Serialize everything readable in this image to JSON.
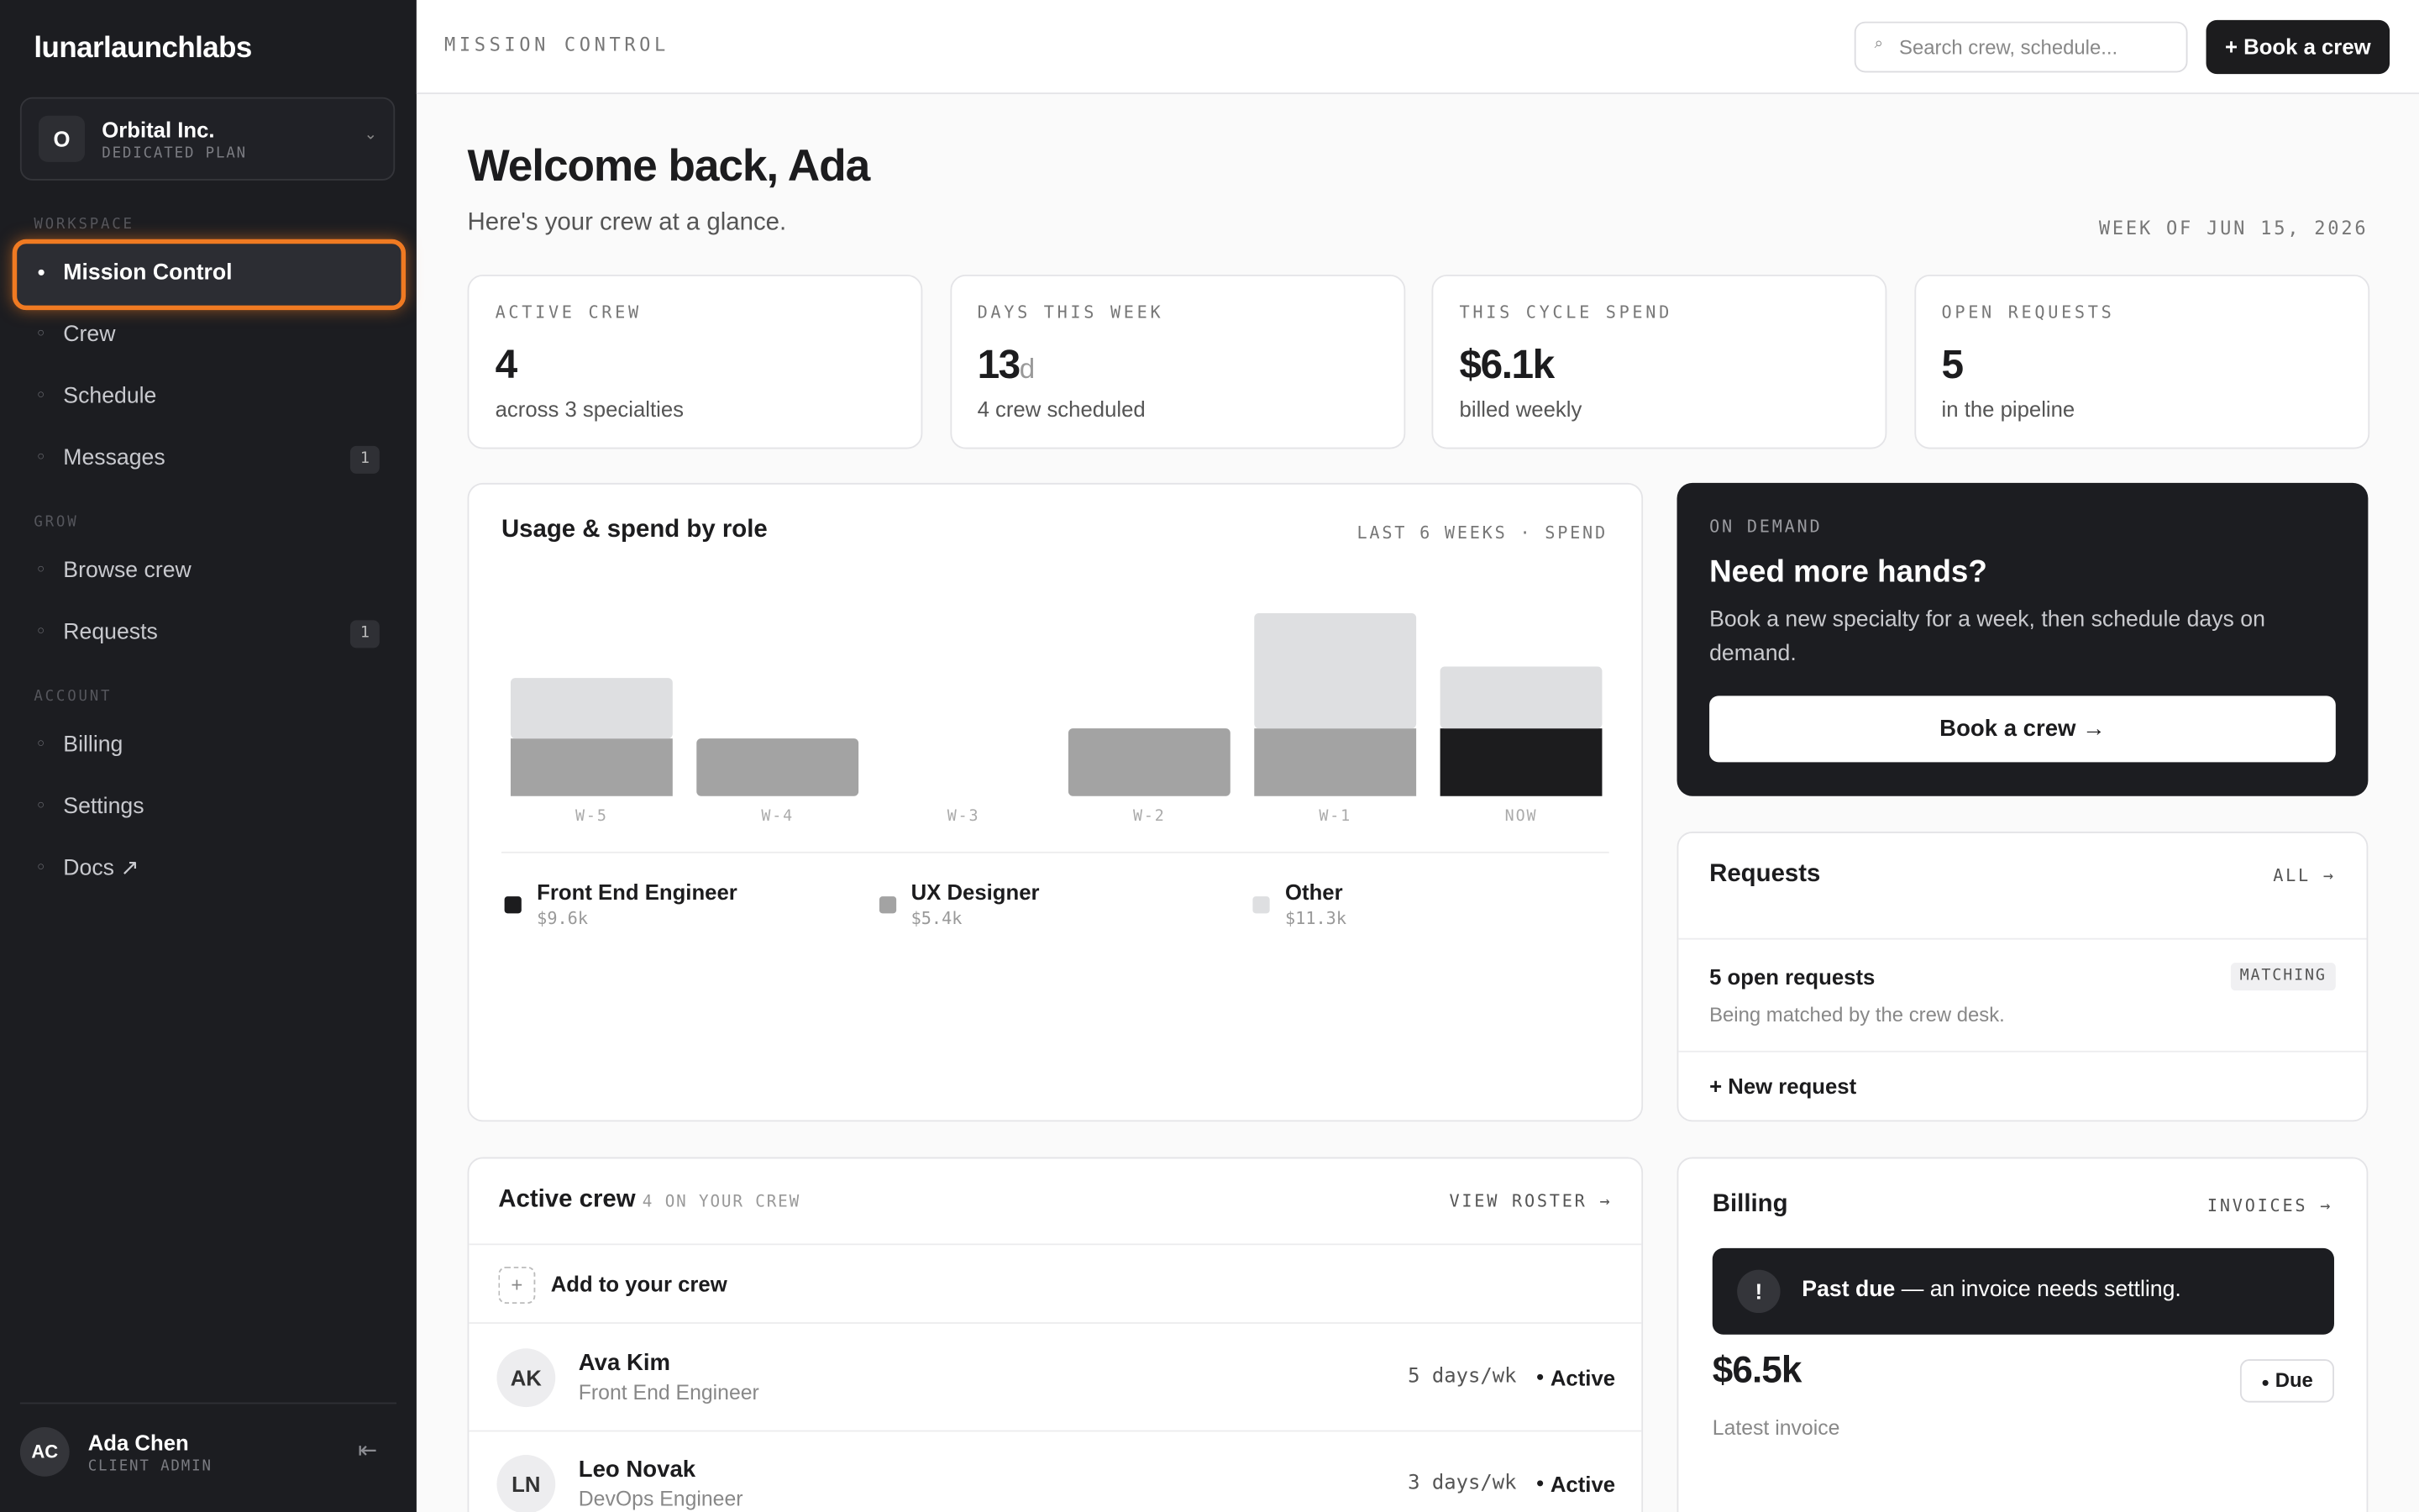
{
  "sidebar": {
    "brand": "lunarlaunchlabs",
    "org": {
      "initial": "O",
      "name": "Orbital Inc.",
      "plan": "DEDICATED PLAN"
    },
    "sections": [
      {
        "label": "WORKSPACE",
        "items": [
          {
            "label": "Mission Control",
            "active": true
          },
          {
            "label": "Crew"
          },
          {
            "label": "Schedule"
          },
          {
            "label": "Messages",
            "badge": "1"
          }
        ]
      },
      {
        "label": "GROW",
        "items": [
          {
            "label": "Browse crew"
          },
          {
            "label": "Requests",
            "badge": "1"
          }
        ]
      },
      {
        "label": "ACCOUNT",
        "items": [
          {
            "label": "Billing"
          },
          {
            "label": "Settings"
          },
          {
            "label": "Docs ↗"
          }
        ]
      }
    ],
    "user": {
      "initials": "AC",
      "name": "Ada Chen",
      "role": "CLIENT ADMIN"
    }
  },
  "topbar": {
    "title": "MISSION CONTROL",
    "search": "Search crew, schedule...",
    "button": "+ Book a crew"
  },
  "header": {
    "title": "Welcome back, Ada",
    "subtitle": "Here's your crew at a glance.",
    "week": "WEEK OF JUN 15, 2026"
  },
  "stats": [
    {
      "label": "ACTIVE CREW",
      "value": "4",
      "sub": "across 3 specialties"
    },
    {
      "label": "DAYS THIS WEEK",
      "value": "13",
      "unit": "d",
      "sub": "4 crew scheduled"
    },
    {
      "label": "THIS CYCLE SPEND",
      "value": "$6.1k",
      "sub": "billed weekly"
    },
    {
      "label": "OPEN REQUESTS",
      "value": "5",
      "sub": "in the pipeline"
    }
  ],
  "chart_data": {
    "type": "bar",
    "stacked": true,
    "title": "Usage & spend by role",
    "subtitle": "LAST 6 WEEKS · SPEND",
    "categories": [
      "W-5",
      "W-4",
      "W-3",
      "W-2",
      "W-1",
      "NOW"
    ],
    "ylim": [
      0,
      3
    ],
    "series": [
      {
        "name": "Front End Engineer",
        "total": "$9.6k",
        "color": "#1c1c1e",
        "values": [
          0,
          0,
          0,
          0,
          0,
          0.94
        ]
      },
      {
        "name": "UX Designer",
        "total": "$5.4k",
        "color": "#a3a3a3",
        "values": [
          0.8,
          0.8,
          0,
          0.94,
          0.94,
          0
        ]
      },
      {
        "name": "Other",
        "total": "$11.3k",
        "color": "#dedfe1",
        "values": [
          0.84,
          0,
          0,
          0,
          1.6,
          0.86
        ]
      }
    ]
  },
  "on_demand": {
    "eyebrow": "ON DEMAND",
    "title": "Need more hands?",
    "text": "Book a new specialty for a week, then schedule days on demand.",
    "button": "Book a crew →"
  },
  "requests": {
    "title": "Requests",
    "link": "ALL →",
    "summary": "5 open requests",
    "badge": "MATCHING",
    "detail": "Being matched by the crew desk.",
    "new": "+ New request"
  },
  "crew": {
    "title": "Active crew",
    "count": "4 ON YOUR CREW",
    "link": "VIEW ROSTER →",
    "add": "Add to your crew",
    "members": [
      {
        "initials": "AK",
        "name": "Ava Kim",
        "role": "Front End Engineer",
        "days": "5 days/wk",
        "status": "Active"
      },
      {
        "initials": "LN",
        "name": "Leo Novak",
        "role": "DevOps Engineer",
        "days": "3 days/wk",
        "status": "Active"
      }
    ]
  },
  "billing": {
    "title": "Billing",
    "link": "INVOICES →",
    "alert_strong": "Past due",
    "alert_text": " — an invoice needs settling.",
    "amount": "$6.5k",
    "badge": "Due",
    "caption": "Latest invoice"
  }
}
